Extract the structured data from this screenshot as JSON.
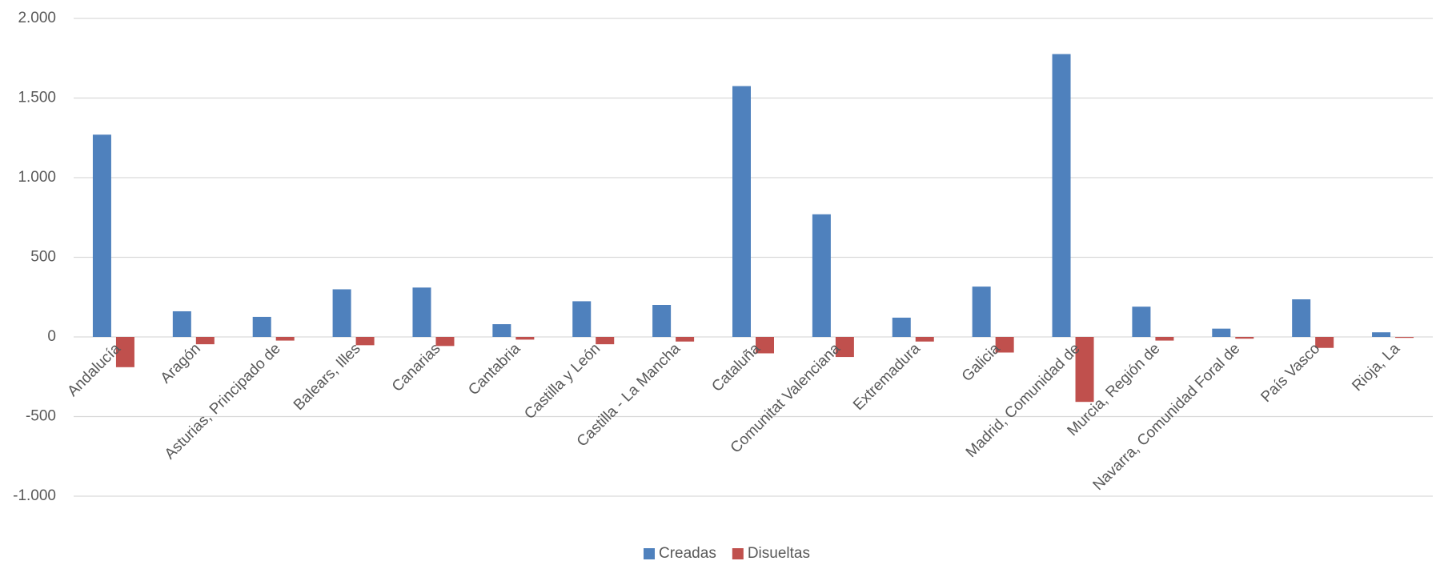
{
  "chart_data": {
    "type": "bar",
    "categories": [
      "Andalucía",
      "Aragón",
      "Asturias, Principado de",
      "Balears, Illes",
      "Canarias",
      "Cantabria",
      "Castilla y León",
      "Castilla - La Mancha",
      "Cataluña",
      "Comunitat Valenciana",
      "Extremadura",
      "Galicia",
      "Madrid, Comunidad de",
      "Murcia, Región de",
      "Navarra, Comunidad Foral de",
      "País Vasco",
      "Rioja, La"
    ],
    "series": [
      {
        "name": "Creadas",
        "color": "#4f81bd",
        "values": [
          1270,
          161,
          126,
          299,
          310,
          80,
          224,
          201,
          1575,
          770,
          121,
          316,
          1776,
          190,
          52,
          236,
          29
        ]
      },
      {
        "name": "Disueltas",
        "color": "#c0504d",
        "values": [
          -190,
          -46,
          -23,
          -52,
          -57,
          -17,
          -46,
          -29,
          -103,
          -126,
          -29,
          -98,
          -408,
          -23,
          -11,
          -69,
          -6
        ]
      }
    ],
    "ylim": [
      -1000,
      2000
    ],
    "yticks": [
      {
        "value": -1000,
        "label": "-1.000"
      },
      -500,
      0,
      500,
      {
        "value": 1000,
        "label": "1.000"
      },
      {
        "value": 1500,
        "label": "1.500"
      },
      {
        "value": 2000,
        "label": "2.000"
      }
    ],
    "grid": true,
    "legend": "bottom"
  }
}
